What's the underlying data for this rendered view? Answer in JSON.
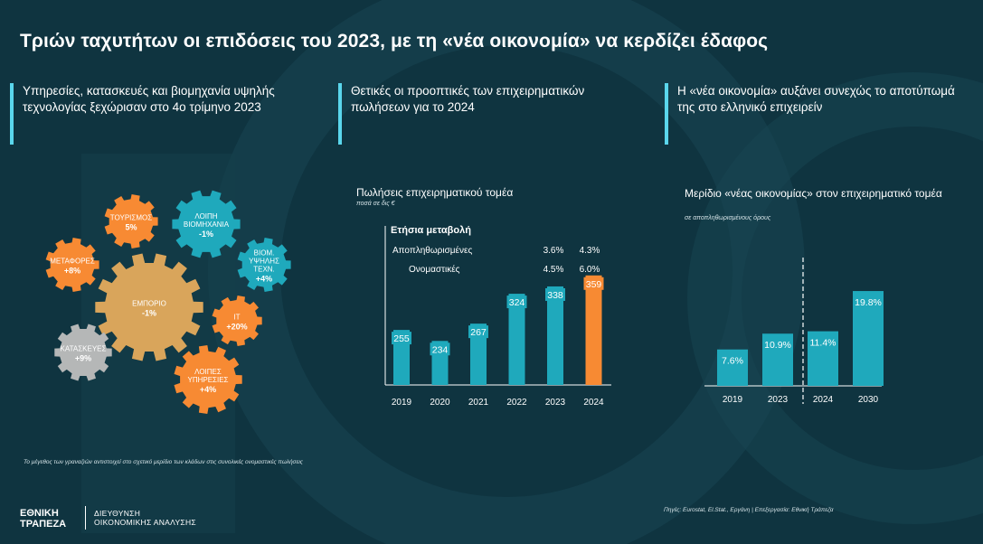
{
  "title": "Τριών ταχυτήτων οι επιδόσεις του 2023, με τη «νέα οικονομία» να κερδίζει έδαφος",
  "highlights": [
    {
      "text": "Υπηρεσίες, κατασκευές και βιομηχανία υψηλής τεχνολογίας ξεχώρισαν στο 4ο τρίμηνο 2023"
    },
    {
      "text": "Θετικές οι προοπτικές των επιχειρηματικών πωλήσεων για το 2024"
    },
    {
      "text": "Η «νέα οικονομία» αυξάνει συνεχώς το αποτύπωμά της στο ελληνικό επιχειρείν"
    }
  ],
  "colors": {
    "teal": "#1fa9bc",
    "orange": "#f78a33",
    "tan": "#d9a55b",
    "grey": "#b5b7b7",
    "accent": "#5ad6ec",
    "background": "#0f3440"
  },
  "gears": [
    {
      "lines": [
        "ΤΟΥΡΙΣΜΟΣ"
      ],
      "value": "5%",
      "color": "orange"
    },
    {
      "lines": [
        "ΛΟΙΠΗ",
        "ΒΙΟΜΗΧΑΝΙΑ"
      ],
      "value": "-1%",
      "color": "teal"
    },
    {
      "lines": [
        "ΜΕΤΑΦΟΡΕΣ"
      ],
      "value": "+8%",
      "color": "orange"
    },
    {
      "lines": [
        "ΒΙΟΜ.",
        "ΥΨΗΛΗΣ",
        "ΤΕΧΝ."
      ],
      "value": "+4%",
      "color": "teal"
    },
    {
      "lines": [
        "ΕΜΠΟΡΙΟ"
      ],
      "value": "-1%",
      "color": "tan"
    },
    {
      "lines": [
        "IT"
      ],
      "value": "+20%",
      "color": "orange"
    },
    {
      "lines": [
        "ΚΑΤΑΣΚΕΥΕΣ"
      ],
      "value": "+9%",
      "color": "grey"
    },
    {
      "lines": [
        "ΛΟΙΠΕΣ",
        "ΥΠΗΡΕΣΙΕΣ"
      ],
      "value": "+4%",
      "color": "orange"
    }
  ],
  "gears_note": "Το μέγεθος των γραναζιών αντιστοιχεί στο σχετικό μερίδιο των κλάδων στις συνολικές ονομαστικές πωλήσεις",
  "chart_data": [
    {
      "type": "bar",
      "title": "Πωλήσεις επιχειρηματικού τομέα",
      "subtitle": "ποσά σε δις €",
      "categories": [
        "2019",
        "2020",
        "2021",
        "2022",
        "2023",
        "2024"
      ],
      "values": [
        255,
        234,
        267,
        324,
        338,
        359
      ],
      "highlight_index": 5,
      "ylim": [
        0,
        400
      ],
      "table": {
        "header": "Ετήσια μεταβολή",
        "rows": [
          {
            "label": "Αποπληθωρισμένες",
            "v2023": "3.6%",
            "v2024": "4.3%"
          },
          {
            "label": "Ονομαστικές",
            "v2023": "4.5%",
            "v2024": "6.0%"
          }
        ]
      }
    },
    {
      "type": "bar",
      "title": "Μερίδιο «νέας οικονομίας» στον επιχειρηματικό τομέα",
      "subtitle": "σε αποπληθωρισμένους όρους",
      "categories": [
        "2019",
        "2023",
        "2024",
        "2030"
      ],
      "values": [
        7.6,
        10.9,
        11.4,
        19.8
      ],
      "labels": [
        "7.6%",
        "10.9%",
        "11.4%",
        "19.8%"
      ],
      "divider_after_index": 1,
      "ylim": [
        0,
        22
      ]
    }
  ],
  "footer": {
    "logo_line1": "ΕΘΝΙΚΗ",
    "logo_line2": "ΤΡΑΠΕΖΑ",
    "dept_line1": "ΔΙΕΥΘΥΝΣΗ",
    "dept_line2": "ΟΙΚΟΝΟΜΙΚΗΣ ΑΝΑΛΥΣΗΣ",
    "source": "Πηγές: Eurostat, El.Stat., Εργάνη | Επεξεργασία: Εθνική Τράπεζα"
  }
}
